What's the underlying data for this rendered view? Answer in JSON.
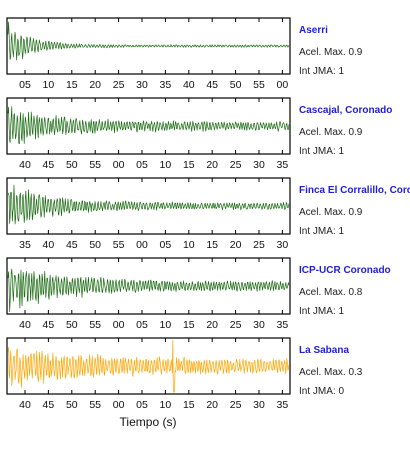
{
  "chart_data": {
    "type": "line",
    "xlabel": "Tiempo (s)",
    "panels": [
      {
        "station": "Aserri",
        "acel_text": "Acel. Max. 0.9",
        "int_text": "Int JMA: 1",
        "color": "#1a6b12",
        "pga": 0.9,
        "jma": 1,
        "tick_labels": [
          "05",
          "10",
          "15",
          "20",
          "25",
          "30",
          "35",
          "40",
          "45",
          "50",
          "55",
          "00"
        ],
        "waveform": {
          "seed": 11,
          "onset": 0.0,
          "amp": 0.95,
          "decay": 3.2,
          "floor": 0.05
        }
      },
      {
        "station": "Cascajal, Coronado",
        "acel_text": "Acel. Max. 0.9",
        "int_text": "Int JMA: 1",
        "color": "#1a6b12",
        "pga": 0.9,
        "jma": 1,
        "tick_labels": [
          "40",
          "45",
          "50",
          "55",
          "00",
          "05",
          "10",
          "15",
          "20",
          "25",
          "30",
          "35"
        ],
        "waveform": {
          "seed": 23,
          "onset": 0.0,
          "amp": 0.85,
          "decay": 1.5,
          "floor": 0.18
        }
      },
      {
        "station": "Finca El Corralillo, Coronado",
        "acel_text": "Acel. Max. 0.9",
        "int_text": "Int JMA: 1",
        "color": "#1a6b12",
        "pga": 0.9,
        "jma": 1,
        "tick_labels": [
          "35",
          "40",
          "45",
          "50",
          "55",
          "00",
          "05",
          "10",
          "15",
          "20",
          "25",
          "30"
        ],
        "waveform": {
          "seed": 37,
          "onset": 0.0,
          "amp": 0.95,
          "decay": 1.7,
          "floor": 0.14
        }
      },
      {
        "station": "ICP-UCR Coronado",
        "acel_text": "Acel. Max. 0.8",
        "int_text": "Int JMA: 1",
        "color": "#1a6b12",
        "pga": 0.8,
        "jma": 1,
        "tick_labels": [
          "40",
          "45",
          "50",
          "55",
          "00",
          "05",
          "10",
          "15",
          "20",
          "25",
          "30",
          "35"
        ],
        "waveform": {
          "seed": 53,
          "onset": 0.0,
          "amp": 0.95,
          "decay": 1.3,
          "floor": 0.2
        }
      },
      {
        "station": "La Sabana",
        "acel_text": "Acel. Max. 0.3",
        "int_text": "Int JMA: 0",
        "color": "#ffa500",
        "pga": 0.3,
        "jma": 0,
        "tick_labels": [
          "40",
          "45",
          "50",
          "55",
          "00",
          "05",
          "10",
          "15",
          "20",
          "25",
          "30",
          "35"
        ],
        "waveform": {
          "seed": 71,
          "onset": 0.0,
          "amp": 0.8,
          "decay": 1.0,
          "floor": 0.28,
          "spike": 0.59
        }
      }
    ]
  }
}
